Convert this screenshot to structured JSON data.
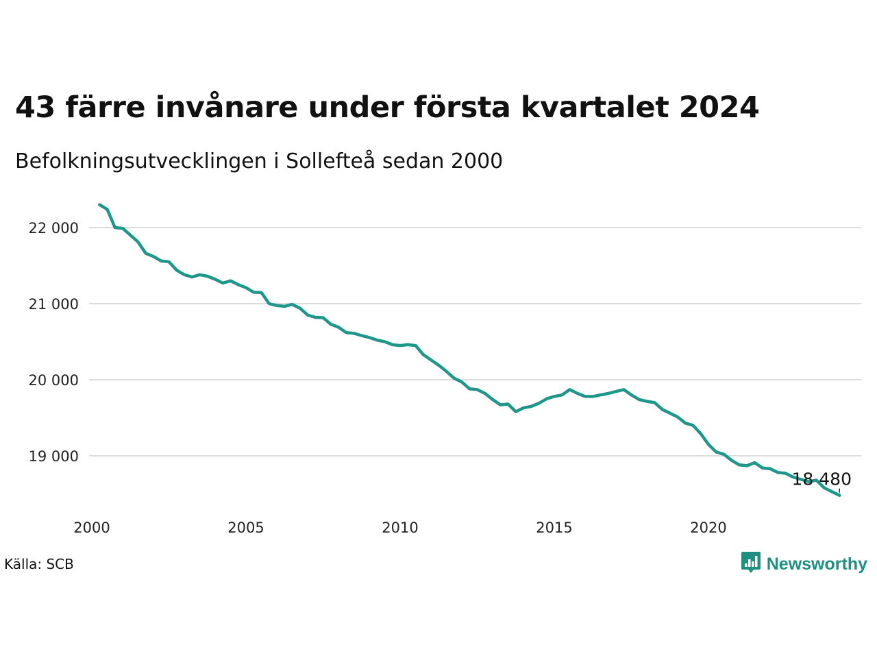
{
  "title": "43 färre invånare under första kvartalet 2024",
  "subtitle": "Befolkningsutvecklingen i Sollefteå sedan 2000",
  "source": "Källa: SCB",
  "brand": {
    "name": "Newsworthy",
    "icon": "newsworthy-logo-icon",
    "color": "#1f8f80"
  },
  "chart_data": {
    "type": "line",
    "title": "43 färre invånare under första kvartalet 2024",
    "subtitle": "Befolkningsutvecklingen i Sollefteå sedan 2000",
    "xlabel": "",
    "ylabel": "",
    "xlim": [
      2000,
      2025
    ],
    "ylim": [
      18400,
      22400
    ],
    "x_ticks": [
      2000,
      2005,
      2010,
      2015,
      2020
    ],
    "x_tick_labels": [
      "2000",
      "2005",
      "2010",
      "2015",
      "2020"
    ],
    "y_ticks": [
      19000,
      20000,
      21000,
      22000
    ],
    "y_tick_labels": [
      "19 000",
      "20 000",
      "21 000",
      "22 000"
    ],
    "grid": "horizontal",
    "line_color": "#1f968a",
    "last_value_label": "18 480",
    "series": [
      {
        "x": [
          2000.25,
          2000.5,
          2000.75,
          2001.0,
          2001.25,
          2001.5,
          2001.75,
          2002.0,
          2002.25,
          2002.5,
          2002.75,
          2003.0,
          2003.25,
          2003.5,
          2003.75,
          2004.0,
          2004.25,
          2004.5,
          2004.75,
          2005.0,
          2005.25,
          2005.5,
          2005.75,
          2006.0,
          2006.25,
          2006.5,
          2006.75,
          2007.0,
          2007.25,
          2007.5,
          2007.75,
          2008.0,
          2008.25,
          2008.5,
          2008.75,
          2009.0,
          2009.25,
          2009.5,
          2009.75,
          2010.0,
          2010.25,
          2010.5,
          2010.75,
          2011.0,
          2011.25,
          2011.5,
          2011.75,
          2012.0,
          2012.25,
          2012.5,
          2012.75,
          2013.0,
          2013.25,
          2013.5,
          2013.75,
          2014.0,
          2014.25,
          2014.5,
          2014.75,
          2015.0,
          2015.25,
          2015.5,
          2015.75,
          2016.0,
          2016.25,
          2016.5,
          2016.75,
          2017.0,
          2017.25,
          2017.5,
          2017.75,
          2018.0,
          2018.25,
          2018.5,
          2018.75,
          2019.0,
          2019.25,
          2019.5,
          2019.75,
          2020.0,
          2020.25,
          2020.5,
          2020.75,
          2021.0,
          2021.25,
          2021.5,
          2021.75,
          2022.0,
          2022.25,
          2022.5,
          2022.75,
          2023.0,
          2023.25,
          2023.5,
          2023.75,
          2024.0,
          2024.25
        ],
        "values": [
          22300,
          22240,
          22000,
          21990,
          21900,
          21810,
          21660,
          21620,
          21560,
          21550,
          21440,
          21380,
          21350,
          21380,
          21360,
          21320,
          21270,
          21300,
          21250,
          21210,
          21150,
          21145,
          21000,
          20975,
          20965,
          20990,
          20940,
          20850,
          20820,
          20815,
          20730,
          20690,
          20620,
          20610,
          20580,
          20555,
          20520,
          20500,
          20460,
          20450,
          20460,
          20450,
          20330,
          20260,
          20190,
          20110,
          20020,
          19970,
          19880,
          19870,
          19820,
          19740,
          19670,
          19680,
          19580,
          19630,
          19650,
          19690,
          19750,
          19780,
          19800,
          19870,
          19820,
          19780,
          19780,
          19800,
          19820,
          19845,
          19870,
          19800,
          19740,
          19715,
          19700,
          19610,
          19560,
          19510,
          19430,
          19400,
          19290,
          19150,
          19050,
          19020,
          18940,
          18880,
          18870,
          18910,
          18840,
          18830,
          18780,
          18770,
          18720,
          18690,
          18660,
          18680,
          18580,
          18530,
          18480
        ]
      }
    ]
  }
}
